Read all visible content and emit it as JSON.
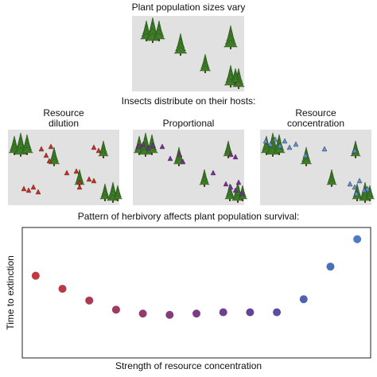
{
  "header": {
    "title": "Plant population sizes vary"
  },
  "section": {
    "title": "Insects distribute on their hosts:"
  },
  "panels": [
    {
      "label_lines": [
        "Resource",
        "dilution"
      ]
    },
    {
      "label_lines": [
        "Proportional"
      ]
    },
    {
      "label_lines": [
        "Resource",
        "concentration"
      ]
    }
  ],
  "chart_data": {
    "type": "scatter",
    "title": "Pattern of herbivory affects plant population survival:",
    "x_label": "Strength of resource concentration",
    "y_label": "Time to extinction",
    "x": [
      1,
      2,
      3,
      4,
      5,
      6,
      7,
      8,
      9,
      10,
      11,
      12,
      13
    ],
    "values": [
      63,
      53,
      44,
      37,
      34,
      33,
      34,
      35,
      35,
      35,
      45,
      70,
      91
    ],
    "colors": [
      "#c03a3e",
      "#b63a48",
      "#ab3a54",
      "#a03a60",
      "#943a6c",
      "#873b78",
      "#7a3d84",
      "#6e408e",
      "#624598",
      "#584ea2",
      "#4d62b0",
      "#4a6fba",
      "#4a7bc4"
    ],
    "xlim": [
      0.5,
      13.5
    ],
    "ylim": [
      0,
      100
    ]
  }
}
